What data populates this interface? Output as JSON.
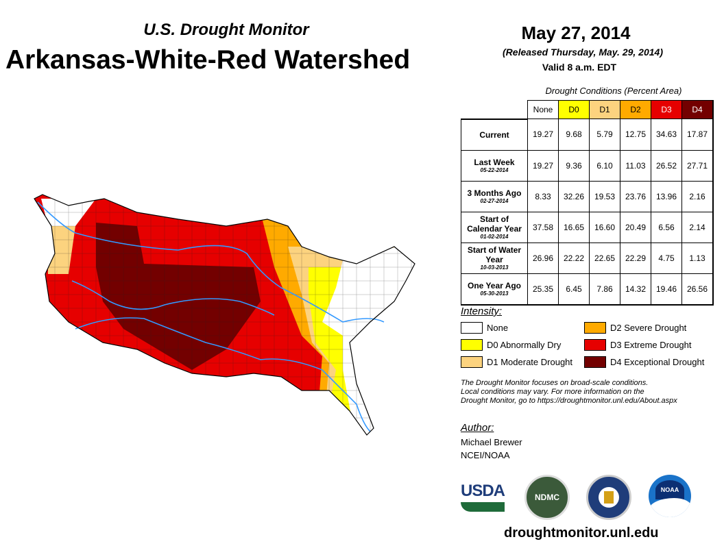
{
  "header": {
    "subtitle": "U.S. Drought Monitor",
    "title": "Arkansas-White-Red Watershed",
    "date": "May 27, 2014",
    "released": "(Released Thursday, May. 29, 2014)",
    "valid": "Valid 8 a.m. EDT"
  },
  "table": {
    "caption": "Drought Conditions (Percent Area)",
    "columns": [
      "None",
      "D0",
      "D1",
      "D2",
      "D3",
      "D4"
    ],
    "column_colors": [
      "#ffffff",
      "#ffff00",
      "#fcd37f",
      "#ffaa00",
      "#e60000",
      "#730000"
    ],
    "rows": [
      {
        "label": "Current",
        "date": "",
        "values": [
          "19.27",
          "9.68",
          "5.79",
          "12.75",
          "34.63",
          "17.87"
        ]
      },
      {
        "label": "Last Week",
        "date": "05-22-2014",
        "values": [
          "19.27",
          "9.36",
          "6.10",
          "11.03",
          "26.52",
          "27.71"
        ]
      },
      {
        "label": "3 Months Ago",
        "date": "02-27-2014",
        "values": [
          "8.33",
          "32.26",
          "19.53",
          "23.76",
          "13.96",
          "2.16"
        ]
      },
      {
        "label": "Start of Calendar Year",
        "date": "01-02-2014",
        "values": [
          "37.58",
          "16.65",
          "16.60",
          "20.49",
          "6.56",
          "2.14"
        ]
      },
      {
        "label": "Start of Water Year",
        "date": "10-03-2013",
        "values": [
          "26.96",
          "22.22",
          "22.65",
          "22.29",
          "4.75",
          "1.13"
        ]
      },
      {
        "label": "One Year Ago",
        "date": "05-30-2013",
        "values": [
          "25.35",
          "6.45",
          "7.86",
          "14.32",
          "19.46",
          "26.56"
        ]
      }
    ]
  },
  "legend": {
    "title": "Intensity:",
    "items": [
      {
        "label": "None",
        "color": "#ffffff"
      },
      {
        "label": "D0 Abnormally Dry",
        "color": "#ffff00"
      },
      {
        "label": "D1 Moderate Drought",
        "color": "#fcd37f"
      },
      {
        "label": "D2 Severe Drought",
        "color": "#ffaa00"
      },
      {
        "label": "D3 Extreme Drought",
        "color": "#e60000"
      },
      {
        "label": "D4 Exceptional Drought",
        "color": "#730000"
      }
    ]
  },
  "note": [
    "The Drought Monitor focuses on broad-scale conditions.",
    "Local conditions may vary. For more information on the",
    "Drought Monitor, go to https://droughtmonitor.unl.edu/About.aspx"
  ],
  "author": {
    "heading": "Author:",
    "name": "Michael Brewer",
    "org": "NCEI/NOAA"
  },
  "logos": {
    "usda": "USDA",
    "ndmc": "NDMC",
    "noaa": "NOAA"
  },
  "url": "droughtmonitor.unl.edu"
}
